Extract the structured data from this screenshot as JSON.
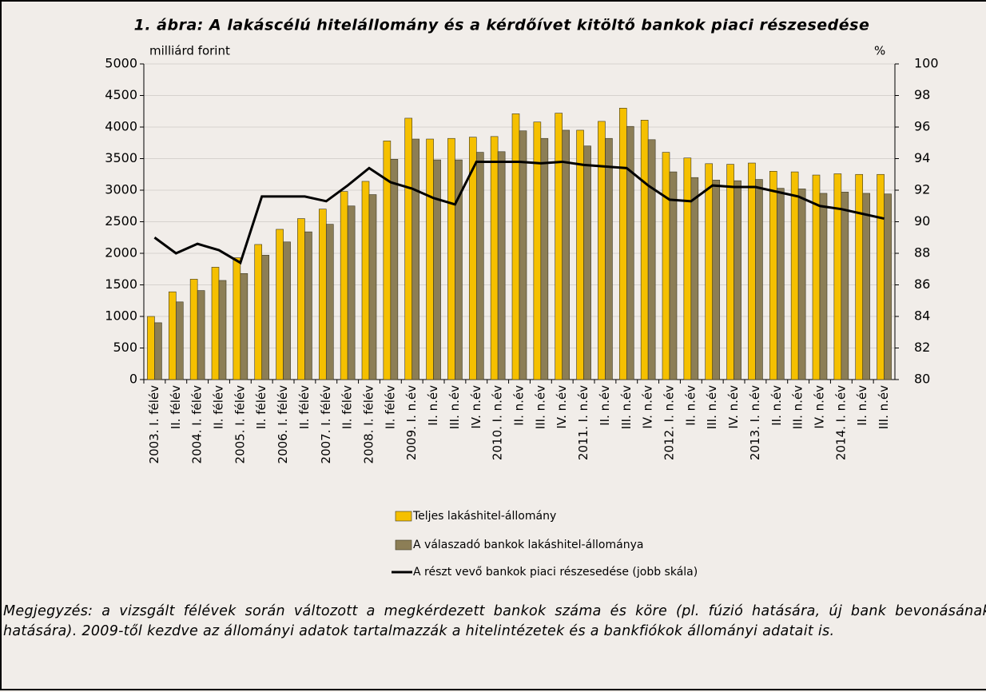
{
  "chart_data": {
    "type": "bar",
    "title": "1.  ábra: A lakáscélú hitelállomány és a kérdőívet kitöltő bankok piaci részesedése",
    "y_label": "milliárd forint",
    "y2_label": "%",
    "categories": [
      "2003. I. félév",
      "II. félév",
      "2004. I. félév",
      "II. félév",
      "2005. I. félév",
      "II. félév",
      "2006. I. félév",
      "II. félév",
      "2007. I. félév",
      "II. félév",
      "2008. I. félév",
      "II. félév",
      "2009. I. n.év",
      "II. n.év",
      "III. n.év",
      "IV. n.év",
      "2010. I. n.év",
      "II. n.év",
      "III. n.év",
      "IV. n.év",
      "2011. I. n.év",
      "II. n.év",
      "III. n.év",
      "IV. n.év",
      "2012. I. n.év",
      "II. n.év",
      "III. n.év",
      "IV. n.év",
      "2013. I. n.év",
      "II. n.év",
      "III. n.év",
      "IV. n.év",
      "2014. I. n.év",
      "II. n.év",
      "III. n.év"
    ],
    "series": [
      {
        "name": "Teljes lakáshitel-állomány",
        "color": "#f5c000",
        "type": "bar",
        "values": [
          1000,
          1390,
          1590,
          1780,
          1930,
          2140,
          2380,
          2550,
          2700,
          2980,
          3140,
          3780,
          4140,
          3810,
          3820,
          3840,
          3850,
          4210,
          4080,
          4220,
          3950,
          4090,
          4300,
          4110,
          3600,
          3510,
          3420,
          3410,
          3430,
          3300,
          3290,
          3240,
          3260,
          3250,
          3250
        ]
      },
      {
        "name": "A válaszadó bankok lakáshitel-állománya",
        "color": "#8c7e56",
        "type": "bar",
        "values": [
          900,
          1230,
          1410,
          1570,
          1680,
          1970,
          2180,
          2340,
          2460,
          2750,
          2930,
          3490,
          3810,
          3480,
          3480,
          3600,
          3610,
          3940,
          3820,
          3950,
          3700,
          3820,
          4010,
          3800,
          3290,
          3200,
          3160,
          3150,
          3170,
          3030,
          3020,
          2950,
          2970,
          2950,
          2940
        ]
      },
      {
        "name": "A részt vevő bankok piaci részesedése (jobb skála)",
        "color": "#000000",
        "type": "line",
        "axis": "y2",
        "values": [
          89.0,
          88.0,
          88.6,
          88.2,
          87.4,
          91.6,
          91.6,
          91.6,
          91.3,
          92.3,
          93.4,
          92.5,
          92.1,
          91.5,
          91.1,
          93.8,
          93.8,
          93.8,
          93.7,
          93.8,
          93.6,
          93.5,
          93.4,
          92.3,
          91.4,
          91.3,
          92.3,
          92.2,
          92.2,
          91.9,
          91.6,
          91.0,
          90.8,
          90.5,
          90.2
        ]
      }
    ],
    "ylim": [
      0,
      5000
    ],
    "yticks": [
      0,
      500,
      1000,
      1500,
      2000,
      2500,
      3000,
      3500,
      4000,
      4500,
      5000
    ],
    "y2lim": [
      80,
      100
    ],
    "y2ticks": [
      80,
      82,
      84,
      86,
      88,
      90,
      92,
      94,
      96,
      98,
      100
    ],
    "grid": true,
    "note": "Megjegyzés: a vizsgált félévek során változott a megkérdezett bankok száma és köre (pl. fúzió hatására, új bank bevonásának hatására). 2009-től kezdve az állományi adatok tartalmazzák a hitelintézetek és a bankfiókok állományi adatait is."
  }
}
